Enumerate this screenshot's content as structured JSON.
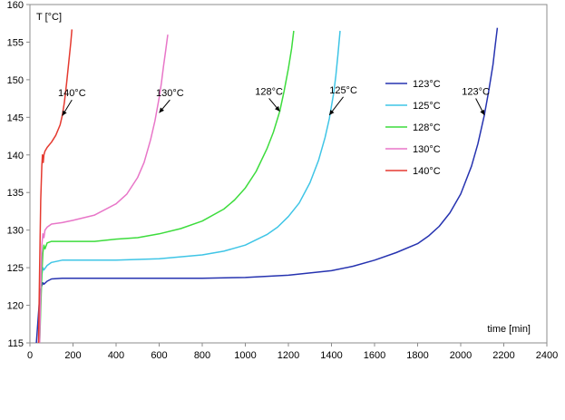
{
  "chart_data": {
    "type": "line",
    "xlabel": "time [min]",
    "ylabel": "T [°C]",
    "xlim": [
      0,
      2400
    ],
    "ylim": [
      115,
      160
    ],
    "xticks": [
      0,
      200,
      400,
      600,
      800,
      1000,
      1200,
      1400,
      1600,
      1800,
      2000,
      2200,
      2400
    ],
    "yticks": [
      115,
      120,
      125,
      130,
      135,
      140,
      145,
      150,
      155,
      160
    ],
    "grid": false,
    "legend_position": "right",
    "series": [
      {
        "name": "123°C",
        "color": "#2633b0",
        "x": [
          30,
          40,
          48,
          55,
          60,
          65,
          80,
          100,
          150,
          200,
          400,
          600,
          800,
          1000,
          1200,
          1400,
          1500,
          1600,
          1700,
          1800,
          1850,
          1900,
          1950,
          2000,
          2050,
          2080,
          2110,
          2130,
          2150,
          2160,
          2170
        ],
        "y": [
          115,
          119,
          122,
          122.6,
          123,
          122.8,
          123.2,
          123.5,
          123.6,
          123.6,
          123.6,
          123.6,
          123.6,
          123.7,
          124,
          124.6,
          125.2,
          126,
          127,
          128.2,
          129.2,
          130.5,
          132.3,
          134.8,
          138.5,
          141.5,
          145.3,
          148.5,
          152,
          154.5,
          156.9
        ]
      },
      {
        "name": "125°C",
        "color": "#3fc5e6",
        "x": [
          40,
          48,
          55,
          60,
          65,
          80,
          100,
          150,
          200,
          400,
          600,
          800,
          900,
          1000,
          1100,
          1150,
          1200,
          1250,
          1300,
          1340,
          1370,
          1390,
          1410,
          1420,
          1430,
          1440
        ],
        "y": [
          115,
          119,
          124,
          125,
          124.7,
          125.3,
          125.7,
          126,
          126,
          126,
          126.2,
          126.7,
          127.2,
          128,
          129.4,
          130.4,
          131.8,
          133.6,
          136.3,
          139.3,
          142.3,
          144.8,
          148.2,
          150.5,
          153.3,
          156.5
        ]
      },
      {
        "name": "128°C",
        "color": "#3ddc3d",
        "x": [
          45,
          55,
          60,
          65,
          70,
          80,
          100,
          150,
          200,
          300,
          400,
          500,
          600,
          700,
          800,
          900,
          950,
          1000,
          1050,
          1100,
          1130,
          1160,
          1180,
          1200,
          1215,
          1225
        ],
        "y": [
          115,
          124,
          127,
          128,
          127.5,
          128.3,
          128.5,
          128.5,
          128.5,
          128.5,
          128.8,
          129,
          129.5,
          130.2,
          131.2,
          132.8,
          134,
          135.6,
          137.8,
          140.8,
          143,
          145.8,
          148.5,
          151.5,
          154.2,
          156.5
        ]
      },
      {
        "name": "130°C",
        "color": "#e876c8",
        "x": [
          45,
          50,
          55,
          60,
          65,
          70,
          80,
          100,
          150,
          200,
          300,
          400,
          450,
          500,
          530,
          560,
          580,
          600,
          610,
          620,
          630,
          640
        ],
        "y": [
          115,
          122,
          128,
          129.5,
          129,
          130,
          130.4,
          130.8,
          131,
          131.3,
          132,
          133.5,
          134.8,
          137,
          139,
          142,
          144.5,
          147.6,
          149.5,
          151.8,
          153.8,
          156
        ]
      },
      {
        "name": "140°C",
        "color": "#e53a30",
        "x": [
          40,
          45,
          50,
          55,
          58,
          60,
          62,
          65,
          70,
          80,
          100,
          120,
          140,
          150,
          160,
          170,
          180,
          190,
          195
        ],
        "y": [
          115,
          125,
          134,
          138.5,
          140,
          139.5,
          139,
          140,
          140.5,
          141,
          141.7,
          142.6,
          144,
          145.2,
          147,
          149.5,
          152.3,
          155,
          156.7
        ]
      }
    ],
    "annotations": [
      {
        "text": "140°C",
        "x": 195,
        "y": 147.8,
        "arrow_to": [
          150,
          145.2
        ]
      },
      {
        "text": "130°C",
        "x": 650,
        "y": 147.8,
        "arrow_to": [
          600,
          145.6
        ]
      },
      {
        "text": "128°C",
        "x": 1110,
        "y": 148,
        "arrow_to": [
          1160,
          145.8
        ]
      },
      {
        "text": "125°C",
        "x": 1455,
        "y": 148.2,
        "arrow_to": [
          1390,
          145.3
        ]
      },
      {
        "text": "123°C",
        "x": 2070,
        "y": 148,
        "arrow_to": [
          2110,
          145.3
        ]
      }
    ]
  }
}
